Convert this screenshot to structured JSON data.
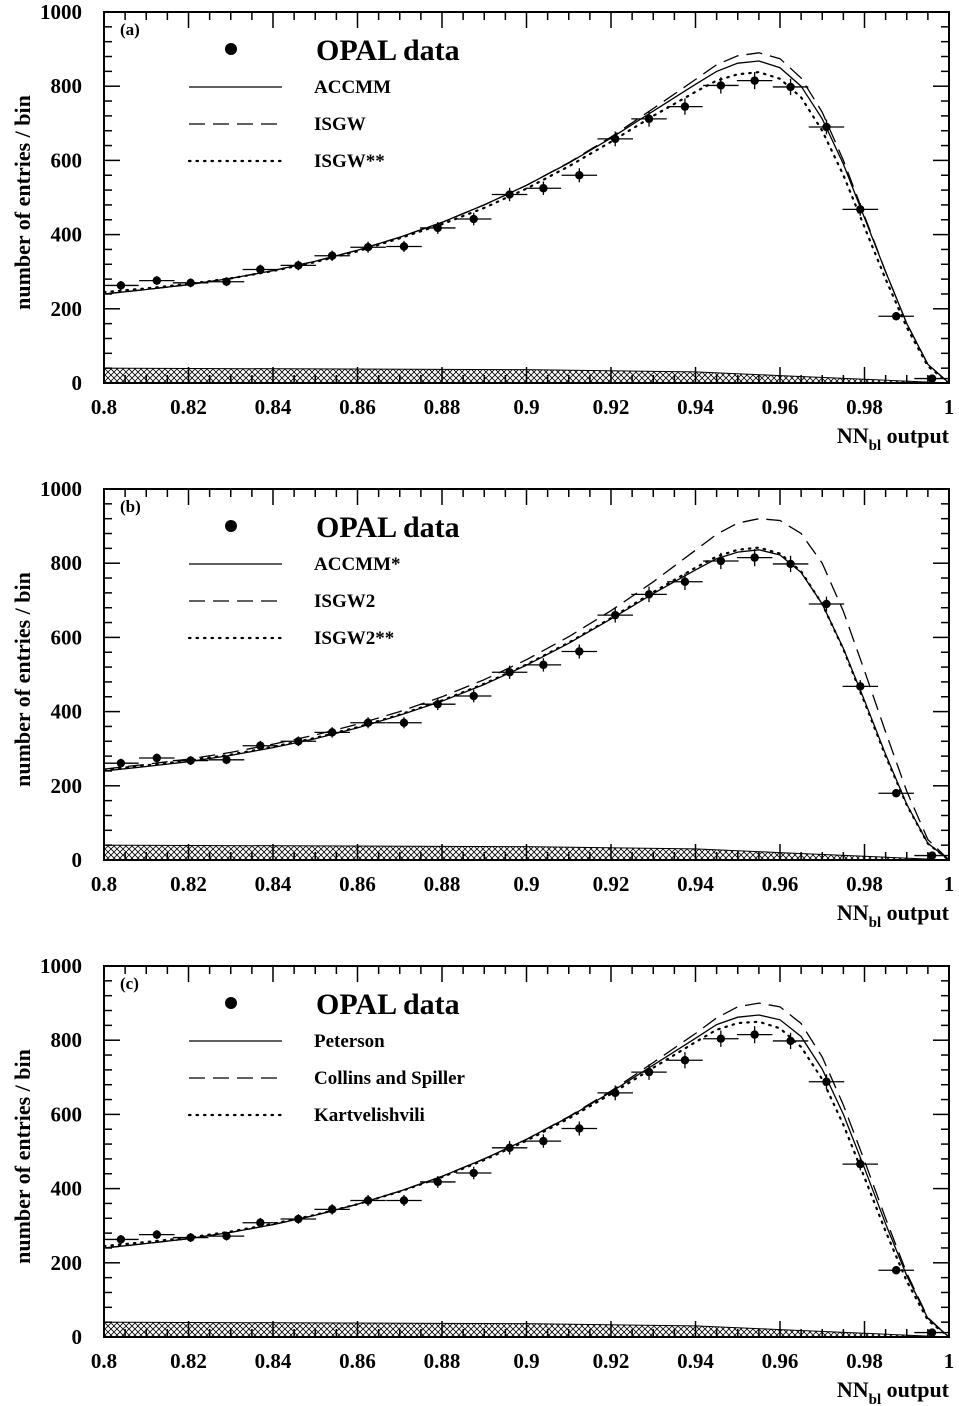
{
  "chart_data": [
    {
      "type": "line",
      "panel": "(a)",
      "xlabel": "NN",
      "xlabel_sub": "bl",
      "xlabel_suffix": " output",
      "ylabel": "number of entries / bin",
      "xlim": [
        0.8,
        1.0
      ],
      "ylim": [
        0,
        1000
      ],
      "xticks": [
        "0.8",
        "0.82",
        "0.84",
        "0.86",
        "0.88",
        "0.9",
        "0.92",
        "0.94",
        "0.96",
        "0.98",
        "1"
      ],
      "yticks": [
        "0",
        "200",
        "400",
        "600",
        "800",
        "1000"
      ],
      "legend": {
        "data_label": "OPAL data",
        "entries": [
          {
            "label": "ACCMM",
            "style": "solid"
          },
          {
            "label": "ISGW",
            "style": "dashed"
          },
          {
            "label": "ISGW**",
            "style": "dotted"
          }
        ],
        "position": "top-left"
      },
      "data_points": {
        "x": [
          0.804,
          0.8125,
          0.8205,
          0.829,
          0.837,
          0.846,
          0.854,
          0.8625,
          0.871,
          0.879,
          0.8875,
          0.896,
          0.904,
          0.9125,
          0.921,
          0.929,
          0.9375,
          0.946,
          0.954,
          0.9625,
          0.971,
          0.979,
          0.9875,
          0.996
        ],
        "y": [
          263,
          276,
          270,
          273,
          306,
          317,
          343,
          366,
          368,
          418,
          442,
          508,
          525,
          560,
          658,
          712,
          745,
          802,
          815,
          798,
          690,
          468,
          180,
          12
        ],
        "y_err": [
          12,
          12,
          12,
          12,
          13,
          13,
          14,
          15,
          15,
          16,
          17,
          18,
          18,
          19,
          20,
          21,
          22,
          22,
          23,
          22,
          20,
          17,
          11,
          4
        ]
      },
      "series": [
        {
          "name": "ACCMM",
          "style": "solid",
          "x": [
            0.8,
            0.81,
            0.82,
            0.83,
            0.84,
            0.85,
            0.86,
            0.87,
            0.88,
            0.89,
            0.9,
            0.91,
            0.92,
            0.93,
            0.94,
            0.945,
            0.95,
            0.955,
            0.96,
            0.965,
            0.97,
            0.975,
            0.98,
            0.985,
            0.99,
            0.995,
            1.0
          ],
          "y": [
            240,
            252,
            265,
            282,
            303,
            328,
            358,
            393,
            433,
            480,
            533,
            593,
            660,
            733,
            805,
            840,
            862,
            868,
            850,
            800,
            712,
            590,
            445,
            300,
            160,
            50,
            0
          ]
        },
        {
          "name": "ISGW",
          "style": "dashed",
          "x": [
            0.8,
            0.81,
            0.82,
            0.83,
            0.84,
            0.85,
            0.86,
            0.87,
            0.88,
            0.89,
            0.9,
            0.91,
            0.92,
            0.93,
            0.94,
            0.945,
            0.95,
            0.955,
            0.96,
            0.965,
            0.97,
            0.975,
            0.98,
            0.985,
            0.99,
            0.995,
            1.0
          ],
          "y": [
            240,
            252,
            265,
            282,
            303,
            328,
            358,
            393,
            433,
            480,
            533,
            594,
            663,
            740,
            818,
            858,
            882,
            890,
            874,
            822,
            730,
            600,
            450,
            300,
            160,
            50,
            0
          ]
        },
        {
          "name": "ISGW**",
          "style": "dotted",
          "x": [
            0.8,
            0.81,
            0.82,
            0.83,
            0.84,
            0.85,
            0.86,
            0.87,
            0.88,
            0.89,
            0.9,
            0.91,
            0.92,
            0.93,
            0.94,
            0.945,
            0.95,
            0.955,
            0.96,
            0.965,
            0.97,
            0.975,
            0.98,
            0.985,
            0.99,
            0.995,
            1.0
          ],
          "y": [
            245,
            255,
            267,
            282,
            302,
            326,
            355,
            390,
            428,
            472,
            524,
            584,
            650,
            720,
            785,
            815,
            832,
            838,
            820,
            770,
            680,
            560,
            420,
            280,
            150,
            45,
            0
          ]
        }
      ],
      "background": {
        "style": "cross-hatched",
        "x": [
          0.8,
          0.85,
          0.9,
          0.94,
          0.96,
          0.98,
          1.0
        ],
        "y": [
          40,
          38,
          36,
          30,
          20,
          10,
          0
        ]
      }
    },
    {
      "type": "line",
      "panel": "(b)",
      "xlabel": "NN",
      "xlabel_sub": "bl",
      "xlabel_suffix": " output",
      "ylabel": "number of entries / bin",
      "xlim": [
        0.8,
        1.0
      ],
      "ylim": [
        0,
        1000
      ],
      "xticks": [
        "0.8",
        "0.82",
        "0.84",
        "0.86",
        "0.88",
        "0.9",
        "0.92",
        "0.94",
        "0.96",
        "0.98",
        "1"
      ],
      "yticks": [
        "0",
        "200",
        "400",
        "600",
        "800",
        "1000"
      ],
      "legend": {
        "data_label": "OPAL data",
        "entries": [
          {
            "label": "ACCMM*",
            "style": "solid"
          },
          {
            "label": "ISGW2",
            "style": "dashed"
          },
          {
            "label": "ISGW2**",
            "style": "dotted"
          }
        ],
        "position": "top-left"
      },
      "data_points": {
        "x": [
          0.804,
          0.8125,
          0.8205,
          0.829,
          0.837,
          0.846,
          0.854,
          0.8625,
          0.871,
          0.879,
          0.8875,
          0.896,
          0.904,
          0.9125,
          0.921,
          0.929,
          0.9375,
          0.946,
          0.954,
          0.9625,
          0.971,
          0.979,
          0.9875,
          0.996
        ],
        "y": [
          261,
          275,
          268,
          270,
          308,
          320,
          344,
          370,
          370,
          420,
          442,
          506,
          526,
          562,
          660,
          716,
          750,
          806,
          815,
          798,
          690,
          468,
          180,
          12
        ],
        "y_err": [
          12,
          12,
          12,
          12,
          13,
          13,
          14,
          15,
          15,
          16,
          17,
          18,
          18,
          19,
          20,
          21,
          22,
          22,
          23,
          22,
          20,
          17,
          11,
          4
        ]
      },
      "series": [
        {
          "name": "ACCMM*",
          "style": "solid",
          "x": [
            0.8,
            0.81,
            0.82,
            0.83,
            0.84,
            0.85,
            0.86,
            0.87,
            0.88,
            0.89,
            0.9,
            0.91,
            0.92,
            0.93,
            0.94,
            0.945,
            0.95,
            0.955,
            0.96,
            0.965,
            0.97,
            0.975,
            0.98,
            0.985,
            0.99,
            0.995,
            1.0
          ],
          "y": [
            240,
            252,
            265,
            282,
            303,
            327,
            356,
            390,
            428,
            473,
            525,
            584,
            650,
            718,
            782,
            812,
            830,
            836,
            822,
            775,
            690,
            570,
            430,
            285,
            150,
            45,
            0
          ]
        },
        {
          "name": "ISGW2",
          "style": "dashed",
          "x": [
            0.8,
            0.81,
            0.82,
            0.83,
            0.84,
            0.85,
            0.86,
            0.87,
            0.88,
            0.89,
            0.9,
            0.91,
            0.92,
            0.93,
            0.94,
            0.945,
            0.95,
            0.955,
            0.96,
            0.965,
            0.97,
            0.975,
            0.98,
            0.985,
            0.99,
            0.995,
            1.0
          ],
          "y": [
            245,
            258,
            272,
            290,
            312,
            337,
            366,
            400,
            440,
            486,
            540,
            602,
            672,
            750,
            835,
            878,
            908,
            920,
            915,
            880,
            800,
            670,
            510,
            345,
            185,
            55,
            0
          ]
        },
        {
          "name": "ISGW2**",
          "style": "dotted",
          "x": [
            0.8,
            0.81,
            0.82,
            0.83,
            0.84,
            0.85,
            0.86,
            0.87,
            0.88,
            0.89,
            0.9,
            0.91,
            0.92,
            0.93,
            0.94,
            0.945,
            0.95,
            0.955,
            0.96,
            0.965,
            0.97,
            0.975,
            0.98,
            0.985,
            0.99,
            0.995,
            1.0
          ],
          "y": [
            243,
            255,
            268,
            284,
            305,
            329,
            358,
            392,
            430,
            475,
            527,
            586,
            652,
            722,
            788,
            818,
            836,
            842,
            826,
            778,
            690,
            568,
            425,
            280,
            148,
            44,
            0
          ]
        }
      ],
      "background": {
        "style": "cross-hatched",
        "x": [
          0.8,
          0.85,
          0.9,
          0.94,
          0.96,
          0.98,
          1.0
        ],
        "y": [
          40,
          38,
          36,
          30,
          20,
          10,
          0
        ]
      }
    },
    {
      "type": "line",
      "panel": "(c)",
      "xlabel": "NN",
      "xlabel_sub": "bl",
      "xlabel_suffix": " output",
      "ylabel": "number of entries / bin",
      "xlim": [
        0.8,
        1.0
      ],
      "ylim": [
        0,
        1000
      ],
      "xticks": [
        "0.8",
        "0.82",
        "0.84",
        "0.86",
        "0.88",
        "0.9",
        "0.92",
        "0.94",
        "0.96",
        "0.98",
        "1"
      ],
      "yticks": [
        "0",
        "200",
        "400",
        "600",
        "800",
        "1000"
      ],
      "legend": {
        "data_label": "OPAL data",
        "entries": [
          {
            "label": "Peterson",
            "style": "solid"
          },
          {
            "label": "Collins and Spiller",
            "style": "dashed"
          },
          {
            "label": "Kartvelishvili",
            "style": "dotted"
          }
        ],
        "position": "top-left"
      },
      "data_points": {
        "x": [
          0.804,
          0.8125,
          0.8205,
          0.829,
          0.837,
          0.846,
          0.854,
          0.8625,
          0.871,
          0.879,
          0.8875,
          0.896,
          0.904,
          0.9125,
          0.921,
          0.929,
          0.9375,
          0.946,
          0.954,
          0.9625,
          0.971,
          0.979,
          0.9875,
          0.996
        ],
        "y": [
          263,
          276,
          268,
          272,
          308,
          318,
          344,
          368,
          368,
          418,
          442,
          510,
          528,
          562,
          658,
          714,
          746,
          804,
          815,
          798,
          688,
          466,
          180,
          12
        ],
        "y_err": [
          12,
          12,
          12,
          12,
          13,
          13,
          14,
          15,
          15,
          16,
          17,
          18,
          18,
          19,
          20,
          21,
          22,
          22,
          23,
          22,
          20,
          17,
          11,
          4
        ]
      },
      "series": [
        {
          "name": "Peterson",
          "style": "solid",
          "x": [
            0.8,
            0.81,
            0.82,
            0.83,
            0.84,
            0.85,
            0.86,
            0.87,
            0.88,
            0.89,
            0.9,
            0.91,
            0.92,
            0.93,
            0.94,
            0.945,
            0.95,
            0.955,
            0.96,
            0.965,
            0.97,
            0.975,
            0.98,
            0.985,
            0.99,
            0.995,
            1.0
          ],
          "y": [
            240,
            252,
            265,
            282,
            303,
            328,
            358,
            393,
            433,
            480,
            533,
            593,
            660,
            733,
            805,
            842,
            862,
            868,
            855,
            810,
            722,
            600,
            455,
            305,
            165,
            50,
            0
          ]
        },
        {
          "name": "Collins and Spiller",
          "style": "dashed",
          "x": [
            0.8,
            0.81,
            0.82,
            0.83,
            0.84,
            0.85,
            0.86,
            0.87,
            0.88,
            0.89,
            0.9,
            0.91,
            0.92,
            0.93,
            0.94,
            0.945,
            0.95,
            0.955,
            0.96,
            0.965,
            0.97,
            0.975,
            0.98,
            0.985,
            0.99,
            0.995,
            1.0
          ],
          "y": [
            240,
            252,
            265,
            282,
            303,
            328,
            358,
            393,
            433,
            480,
            533,
            594,
            663,
            740,
            818,
            860,
            890,
            900,
            890,
            845,
            755,
            625,
            475,
            320,
            172,
            52,
            0
          ]
        },
        {
          "name": "Kartvelishvili",
          "style": "dotted",
          "x": [
            0.8,
            0.81,
            0.82,
            0.83,
            0.84,
            0.85,
            0.86,
            0.87,
            0.88,
            0.89,
            0.9,
            0.91,
            0.92,
            0.93,
            0.94,
            0.945,
            0.95,
            0.955,
            0.96,
            0.965,
            0.97,
            0.975,
            0.98,
            0.985,
            0.99,
            0.995,
            1.0
          ],
          "y": [
            245,
            256,
            268,
            284,
            305,
            329,
            358,
            392,
            431,
            477,
            529,
            589,
            655,
            726,
            795,
            828,
            846,
            850,
            832,
            782,
            695,
            572,
            430,
            285,
            150,
            45,
            0
          ]
        }
      ],
      "background": {
        "style": "cross-hatched",
        "x": [
          0.8,
          0.85,
          0.9,
          0.94,
          0.96,
          0.98,
          1.0
        ],
        "y": [
          40,
          38,
          36,
          30,
          20,
          10,
          0
        ]
      }
    }
  ]
}
